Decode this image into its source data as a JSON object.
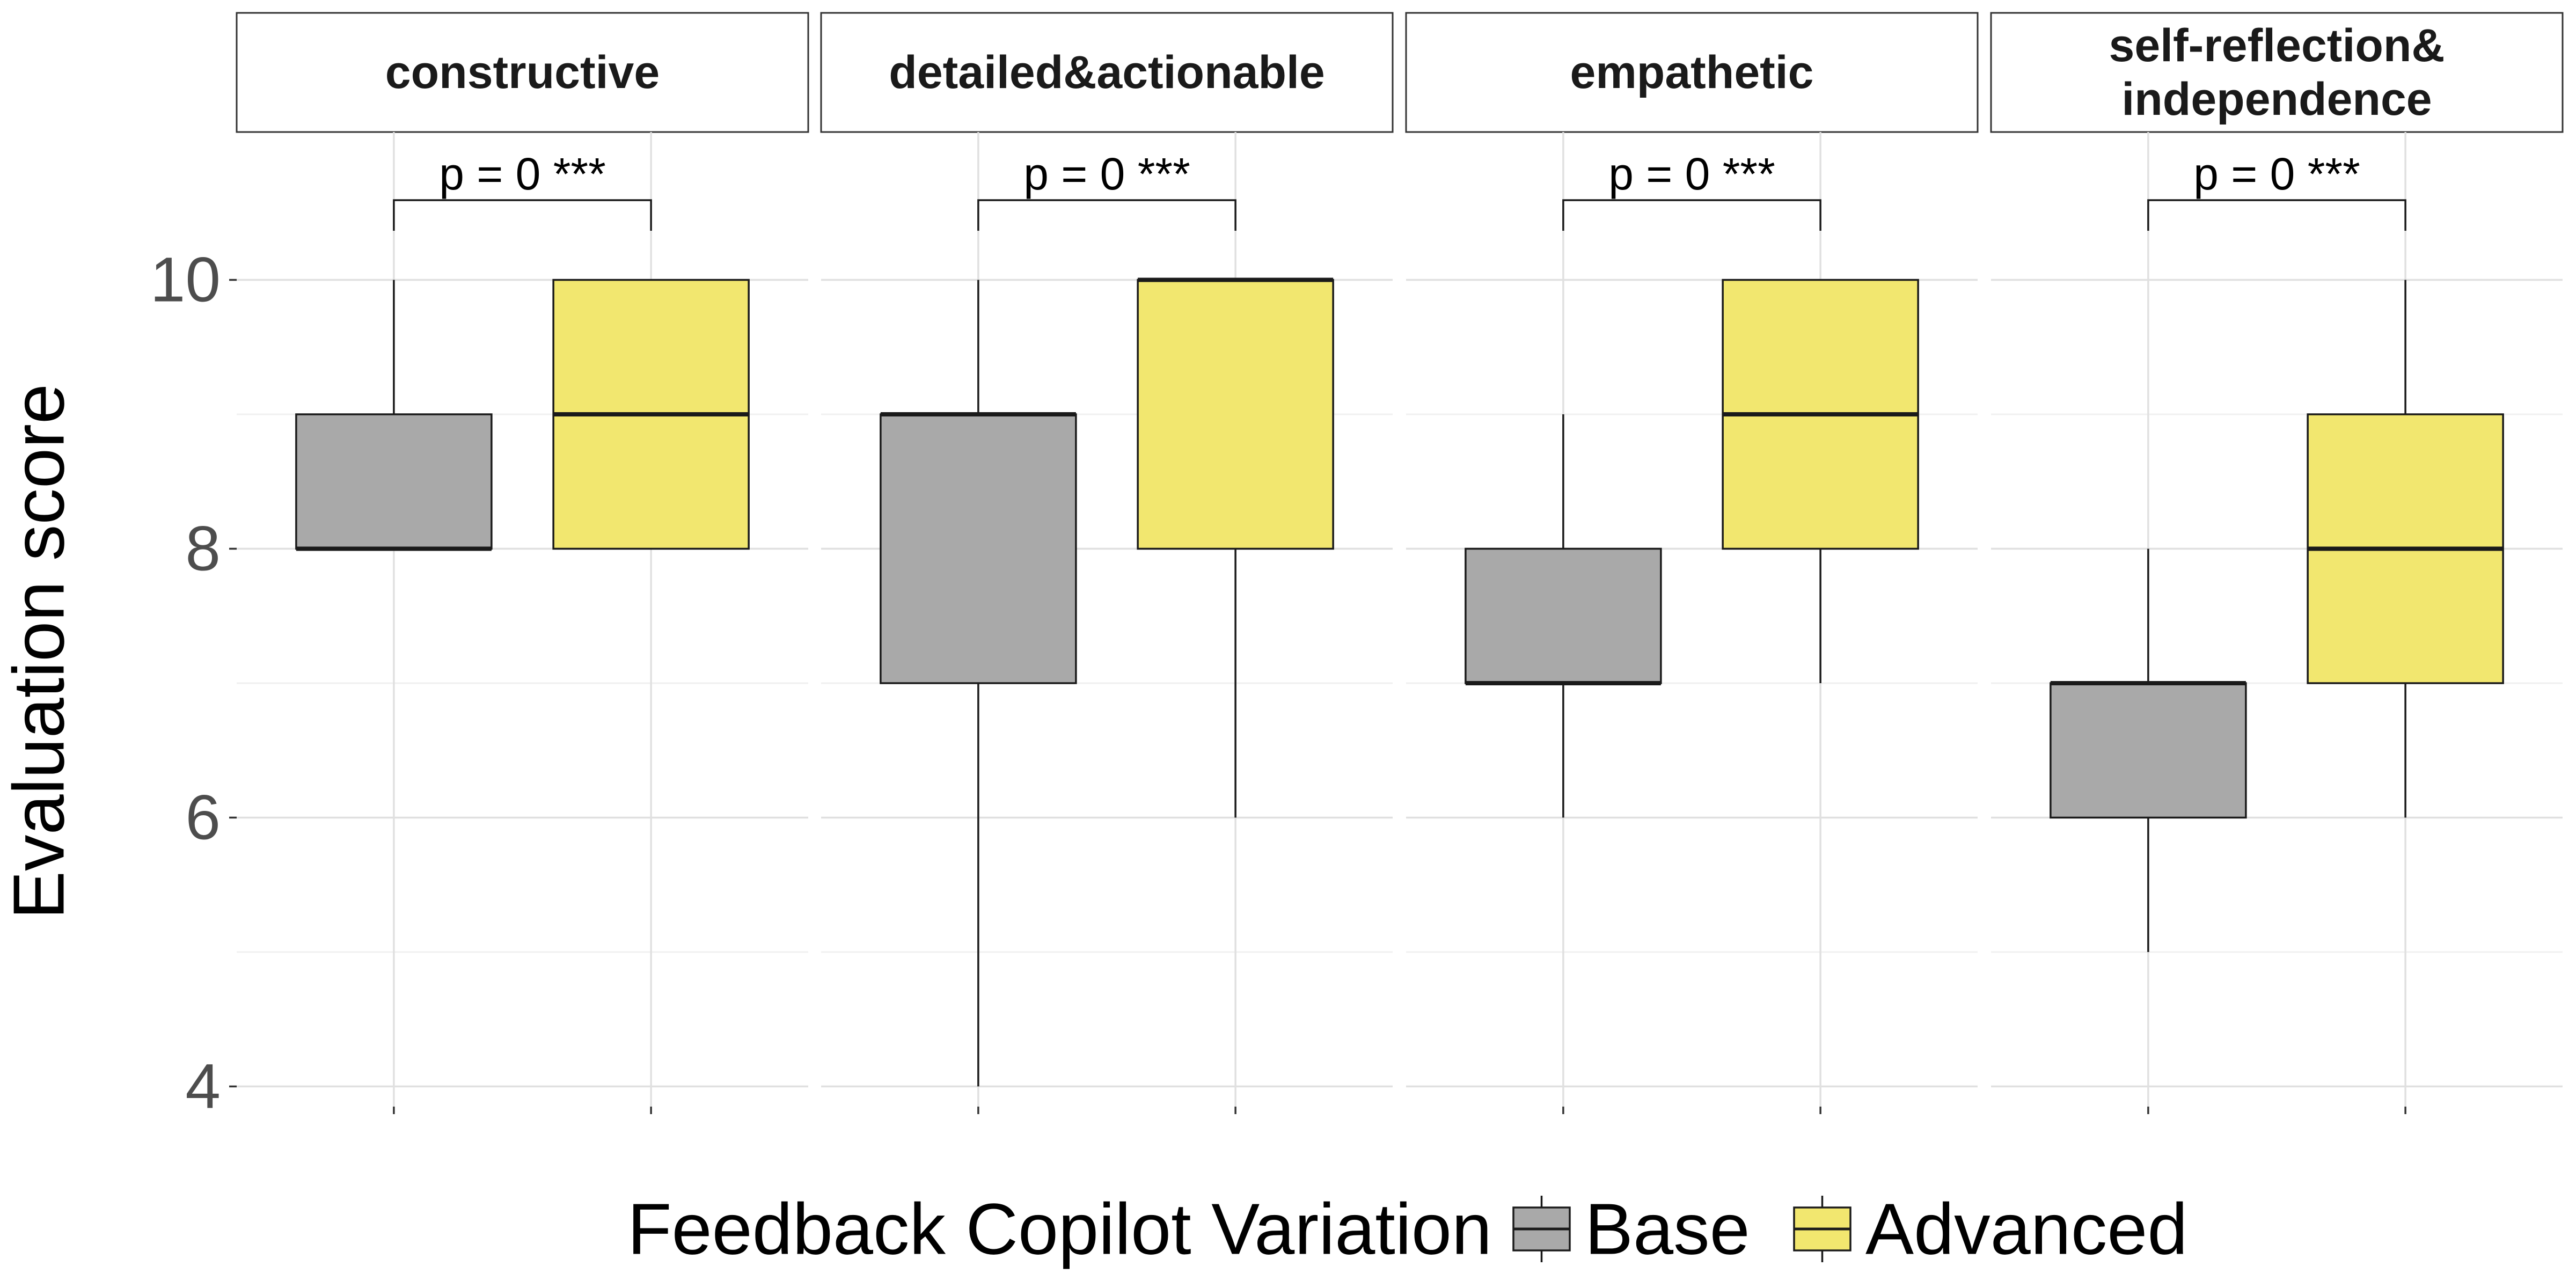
{
  "chart_data": {
    "type": "boxplot",
    "ylabel": "Evaluation score",
    "ylim": [
      3.85,
      11.1
    ],
    "y_ticks": [
      "4",
      "6",
      "8",
      "10"
    ],
    "grid": true,
    "legend": {
      "title": "Feedback Copilot Variation",
      "position": "bottom",
      "entries": [
        "Base",
        "Advanced"
      ]
    },
    "colors": {
      "Base": "#a9a9a9",
      "Advanced": "#f2e76f"
    },
    "panels": [
      {
        "title": "constructive",
        "p_label": "p = 0 ***",
        "boxes": [
          {
            "group": "Base",
            "min": 8,
            "q1": 8,
            "median": 8,
            "q3": 9,
            "max": 10
          },
          {
            "group": "Advanced",
            "min": 8,
            "q1": 8,
            "median": 9,
            "q3": 10,
            "max": 10
          }
        ]
      },
      {
        "title": "detailed&actionable",
        "p_label": "p = 0 ***",
        "boxes": [
          {
            "group": "Base",
            "min": 4,
            "q1": 7,
            "median": 9,
            "q3": 9,
            "max": 10
          },
          {
            "group": "Advanced",
            "min": 6,
            "q1": 8,
            "median": 10,
            "q3": 10,
            "max": 10
          }
        ]
      },
      {
        "title": "empathetic",
        "p_label": "p = 0 ***",
        "boxes": [
          {
            "group": "Base",
            "min": 6,
            "q1": 7,
            "median": 7,
            "q3": 8,
            "max": 9
          },
          {
            "group": "Advanced",
            "min": 7,
            "q1": 8,
            "median": 9,
            "q3": 10,
            "max": 10
          }
        ]
      },
      {
        "title": "self-reflection&\nindependence",
        "p_label": "p = 0 ***",
        "boxes": [
          {
            "group": "Base",
            "min": 5,
            "q1": 6,
            "median": 7,
            "q3": 7,
            "max": 8
          },
          {
            "group": "Advanced",
            "min": 6,
            "q1": 7,
            "median": 8,
            "q3": 9,
            "max": 10
          }
        ]
      }
    ]
  }
}
